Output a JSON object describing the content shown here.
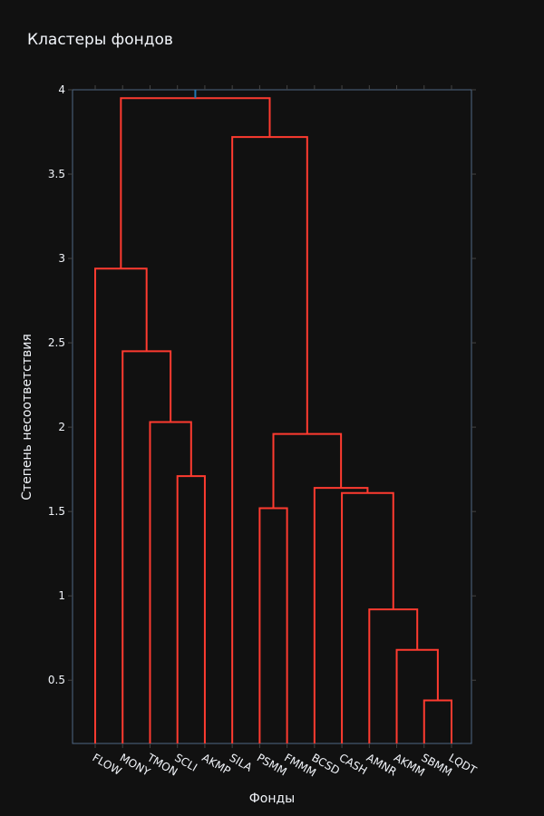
{
  "chart_data": {
    "type": "dendrogram",
    "title": "Кластеры фондов",
    "xlabel": "Фонды",
    "ylabel": "Степень несоответствия",
    "ylim": [
      0.125,
      4.0
    ],
    "yticks": [
      0.5,
      1,
      1.5,
      2,
      2.5,
      3,
      3.5,
      4
    ],
    "ytick_labels": [
      "0.5",
      "1",
      "1.5",
      "2",
      "2.5",
      "3",
      "3.5",
      "4"
    ],
    "leaves": [
      "FLOW",
      "MONY",
      "TMON",
      "SCLI",
      "AKMP",
      "SILA",
      "PSMM",
      "FMMM",
      "BCSD",
      "CASH",
      "AMNR",
      "AKMM",
      "SBMM",
      "LQDT"
    ],
    "link_color": "#ff3b30",
    "above_threshold_color": "#1f77b4",
    "merges": [
      {
        "left": "SBMM",
        "right": "LQDT",
        "height": 0.38
      },
      {
        "left": "AKMM",
        "right": "SBMM+LQDT",
        "height": 0.68
      },
      {
        "left": "AMNR",
        "right": "AKMM+SBMM+LQDT",
        "height": 0.92
      },
      {
        "left": "CASH",
        "right": "AMNR..LQDT",
        "height": 1.61
      },
      {
        "left": "BCSD",
        "right": "CASH..LQDT",
        "height": 1.64
      },
      {
        "left": "PSMM",
        "right": "FMMM",
        "height": 1.52
      },
      {
        "left": "PSMM+FMMM",
        "right": "BCSD..LQDT",
        "height": 1.96
      },
      {
        "left": "SILA",
        "right": "PSMM..LQDT",
        "height": 3.72
      },
      {
        "left": "SCLI",
        "right": "AKMP",
        "height": 1.71
      },
      {
        "left": "TMON",
        "right": "SCLI+AKMP",
        "height": 2.03
      },
      {
        "left": "MONY",
        "right": "TMON+SCLI+AKMP",
        "height": 2.45
      },
      {
        "left": "FLOW",
        "right": "MONY..AKMP",
        "height": 2.94
      },
      {
        "left": "FLOW..AKMP",
        "right": "SILA..LQDT",
        "height": 3.95
      }
    ]
  }
}
